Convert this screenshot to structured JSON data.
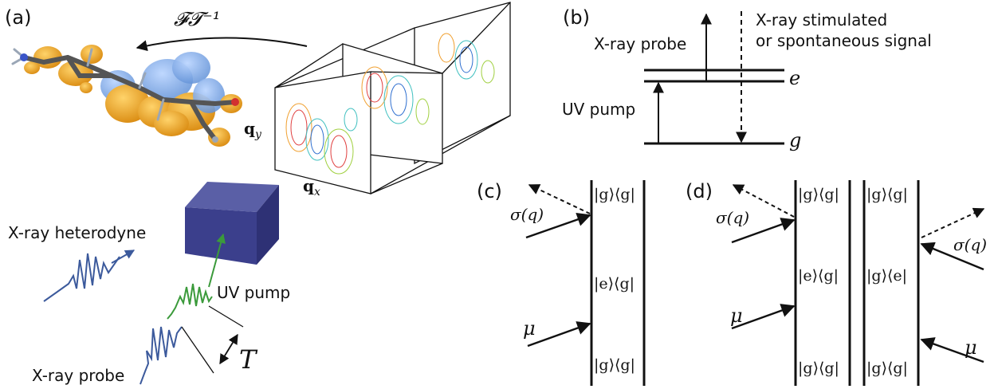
{
  "panels": {
    "a": "(a)",
    "b": "(b)",
    "c": "(c)",
    "d": "(d)"
  },
  "panel_a": {
    "inverse_ft": "𝓕𝓣⁻¹",
    "qy": "q",
    "qy_sub": "y",
    "qx": "q",
    "qx_sub": "x",
    "xray_heterodyne": "X-ray heterodyne",
    "uv_pump": "UV pump",
    "xray_probe": "X-ray probe",
    "delay": "T",
    "colors": {
      "orbital_gold": "#f0a020",
      "orbital_blue": "#7aa8e8",
      "sample_box": "#3b3f8c",
      "xray_pulse": "#3c5a9c",
      "uv_pulse": "#3b9a3b"
    }
  },
  "panel_b": {
    "xray_probe": "X-ray probe",
    "signal_line1": "X-ray stimulated",
    "signal_line2": "or spontaneous signal",
    "uv_pump": "UV pump",
    "level_e": "e",
    "level_g": "g"
  },
  "panel_c": {
    "sigma": "σ(q)",
    "mu": "μ",
    "states": [
      "|g⟩⟨g|",
      "|e⟩⟨g|",
      "|g⟩⟨g|"
    ]
  },
  "panel_d": {
    "sigma_left": "σ(q)",
    "sigma_right": "σ(q)",
    "mu_left": "μ",
    "mu_right": "μ",
    "states_left": [
      "|g⟩⟨g|",
      "|e⟩⟨g|",
      "|g⟩⟨g|"
    ],
    "states_right": [
      "|g⟩⟨g|",
      "|g⟩⟨e|",
      "|g⟩⟨g|"
    ]
  }
}
